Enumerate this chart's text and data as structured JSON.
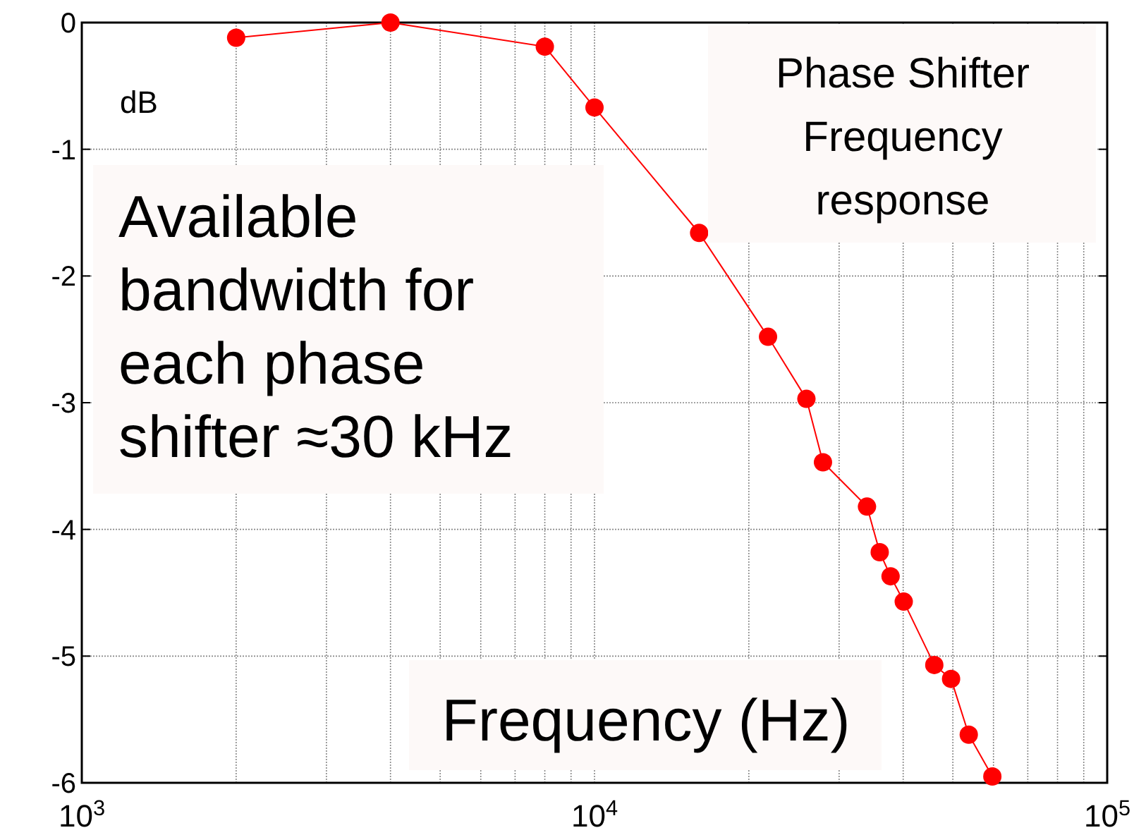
{
  "chart_data": {
    "type": "line",
    "title": "Phase Shifter Frequency response",
    "xlabel": "Frequency (Hz)",
    "ylabel": "dB",
    "annotations": [
      "Available bandwidth for each phase shifter ≈30 kHz"
    ],
    "log": "x",
    "grid": true,
    "marker": "circle",
    "line_style": "solid",
    "xlim": [
      1000,
      100000
    ],
    "xticks": [
      {
        "value": 1000,
        "label": "10$^{3}$"
      },
      {
        "value": 10000,
        "label": "10$^{4}$"
      },
      {
        "value": 100000,
        "label": "10$^{5}$"
      }
    ],
    "ylim": [
      -6,
      0
    ],
    "yticks": [
      -6,
      -5,
      -4,
      -3,
      -2,
      -1,
      0
    ],
    "series": [
      {
        "color": "#ff0000",
        "x": [
          2000,
          4000,
          8000,
          10000,
          16000,
          21800,
          25900,
          27900,
          34000,
          36000,
          37800,
          40100,
          46000,
          49600,
          53700,
          59700
        ],
        "values": [
          -0.12,
          0,
          -0.19,
          -0.67,
          -1.66,
          -2.48,
          -2.97,
          -3.47,
          -3.82,
          -4.18,
          -4.37,
          -4.57,
          -5.07,
          -5.18,
          -5.62,
          -5.95
        ]
      }
    ]
  }
}
